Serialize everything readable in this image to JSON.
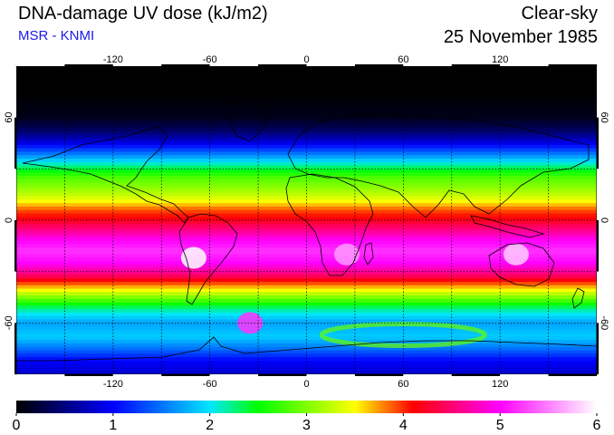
{
  "header": {
    "title": "DNA-damage UV dose (kJ/m2)",
    "subtitle": "MSR - KNMI",
    "condition": "Clear-sky",
    "date": "25 November 1985"
  },
  "map": {
    "projection": "equirectangular",
    "lon_range": [
      -180,
      180
    ],
    "lat_range": [
      -90,
      90
    ],
    "lon_ticks": [
      "-120",
      "-60",
      "0",
      "60",
      "120"
    ],
    "lat_ticks": [
      "60",
      "0",
      "-60"
    ],
    "lon_tick_values": [
      -120,
      -60,
      0,
      60,
      120
    ],
    "lat_tick_values": [
      60,
      0,
      -60
    ],
    "grid_lon_values": [
      -150,
      -120,
      -90,
      -60,
      -30,
      0,
      30,
      60,
      90,
      120,
      150
    ],
    "grid_lat_values": [
      60,
      30,
      0,
      -30,
      -60
    ],
    "grid": true,
    "grid_style": "dotted",
    "field_profile": {
      "description_units": "UV dose kJ/m2 by latitude (zonal mean estimate)",
      "lat": [
        90,
        75,
        60,
        52,
        45,
        38,
        32,
        25,
        18,
        12,
        6,
        0,
        -6,
        -12,
        -18,
        -25,
        -32,
        -38,
        -45,
        -52,
        -60,
        -68,
        -75,
        -82,
        -90
      ],
      "value": [
        0.0,
        0.0,
        0.1,
        0.4,
        0.9,
        1.6,
        2.2,
        2.8,
        3.1,
        3.4,
        3.9,
        4.2,
        4.6,
        5.0,
        5.2,
        5.0,
        4.5,
        3.8,
        3.0,
        2.2,
        1.7,
        1.9,
        1.5,
        1.0,
        0.8
      ]
    },
    "features": [
      {
        "name": "andes-peak",
        "lon": -70,
        "lat": -22,
        "value": 6.0
      },
      {
        "name": "australia-peak",
        "lon": 130,
        "lat": -20,
        "value": 5.8
      },
      {
        "name": "southern-africa-peak",
        "lon": 25,
        "lat": -20,
        "value": 5.6
      },
      {
        "name": "ozone-hole-peak",
        "lon": -35,
        "lat": -60,
        "value": 5.2
      },
      {
        "name": "antarctic-ring",
        "lon": 60,
        "lat": -67,
        "value": 2.9
      }
    ]
  },
  "colorbar": {
    "min": 0,
    "max": 6,
    "labels": [
      "0",
      "1",
      "2",
      "3",
      "4",
      "5",
      "6"
    ],
    "label_values": [
      0,
      1,
      2,
      3,
      4,
      5,
      6
    ],
    "colors": [
      "#000000",
      "#0000ff",
      "#00e6ff",
      "#00ff00",
      "#ffff00",
      "#ff0000",
      "#ff00ff",
      "#ffffff"
    ],
    "color_stops": [
      0,
      1,
      2,
      2.5,
      3.5,
      4.1,
      5.0,
      6.0
    ]
  }
}
